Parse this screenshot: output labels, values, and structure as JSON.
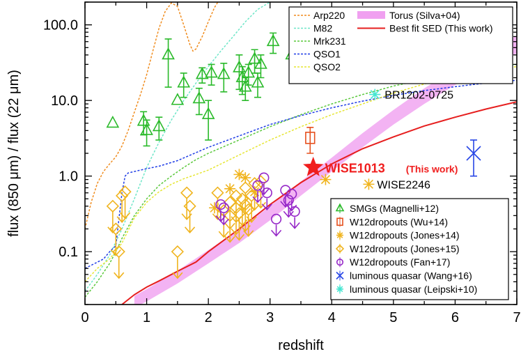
{
  "chart_data": {
    "type": "scatter",
    "xlabel": "redshift",
    "ylabel": "flux (850 μm) / flux (22 μm)",
    "xlim": [
      0,
      7
    ],
    "ylim": [
      0.02,
      200
    ],
    "yscale": "log",
    "x_ticks": [
      "0",
      "1",
      "2",
      "3",
      "4",
      "5",
      "6",
      "7"
    ],
    "y_ticks": [
      {
        "value": 0.1,
        "label": "0.1"
      },
      {
        "value": 1,
        "label": "1.0"
      },
      {
        "value": 10,
        "label": "10.0"
      },
      {
        "value": 100,
        "label": "100.0"
      }
    ],
    "grid": false,
    "templates": [
      {
        "name": "Arp220",
        "color": "#f08c1e",
        "dash": "dotted",
        "x": [
          0.0,
          0.1,
          0.2,
          0.3,
          0.4,
          0.5,
          0.6,
          0.7,
          0.8,
          0.9,
          1.0,
          1.1,
          1.2,
          1.3,
          1.4,
          1.5,
          1.6,
          1.7,
          1.75,
          1.8,
          1.9,
          2.0,
          2.1,
          2.2
        ],
        "y": [
          0.2,
          0.45,
          0.8,
          1.15,
          1.45,
          1.8,
          2.5,
          4.0,
          7.0,
          12.0,
          22.0,
          45.0,
          90.0,
          150.0,
          195.0,
          175.0,
          100.0,
          55.0,
          45.0,
          48.0,
          70.0,
          110.0,
          170.0,
          230.0
        ]
      },
      {
        "name": "M82",
        "color": "#6ee6c8",
        "dash": "dotted",
        "x": [
          0.0,
          0.2,
          0.4,
          0.6,
          0.8,
          1.0,
          1.2,
          1.4,
          1.6,
          1.8,
          2.0,
          2.2,
          2.4,
          2.6,
          2.8,
          3.0,
          3.2
        ],
        "y": [
          0.03,
          0.05,
          0.09,
          0.2,
          0.5,
          1.3,
          2.8,
          5.5,
          10.0,
          17.0,
          28.0,
          45.0,
          70.0,
          110.0,
          160.0,
          200.0,
          230.0
        ]
      },
      {
        "name": "Mrk231",
        "color": "#5ac83c",
        "dash": "dotted",
        "x": [
          0.0,
          0.2,
          0.4,
          0.5,
          0.6,
          0.8,
          1.0,
          1.2,
          1.4,
          1.6,
          1.8,
          2.0,
          2.5,
          3.0,
          3.5,
          4.0,
          4.5,
          5.0,
          5.5,
          6.0,
          6.5,
          7.0
        ],
        "y": [
          0.025,
          0.04,
          0.07,
          0.1,
          0.15,
          0.3,
          0.5,
          0.75,
          1.0,
          1.3,
          1.65,
          2.0,
          3.0,
          4.5,
          6.5,
          9.0,
          12.0,
          15.5,
          19.0,
          23.0,
          27.0,
          30.0
        ]
      },
      {
        "name": "QSO1",
        "color": "#1e3ce6",
        "dash": "dotted",
        "x": [
          0.0,
          0.3,
          0.4,
          0.5,
          0.6,
          0.65,
          0.7,
          0.8,
          1.0,
          1.2,
          1.5,
          2.0,
          2.5,
          3.0,
          3.5,
          4.0,
          4.5,
          5.0,
          5.5,
          6.0,
          6.5,
          7.0
        ],
        "y": [
          0.06,
          0.08,
          0.1,
          0.12,
          0.6,
          1.0,
          1.1,
          1.15,
          1.25,
          1.35,
          1.6,
          2.4,
          3.4,
          4.8,
          6.3,
          8.0,
          9.8,
          11.7,
          13.5,
          15.2,
          17.0,
          18.5
        ]
      },
      {
        "name": "QSO2",
        "color": "#e6e632",
        "dash": "dotted",
        "x": [
          0.0,
          0.2,
          0.4,
          0.6,
          0.8,
          1.0,
          1.2,
          1.4,
          1.6,
          1.8,
          2.0,
          2.5,
          3.0,
          3.5,
          4.0,
          4.5,
          5.0,
          5.5,
          6.0,
          6.5,
          7.0
        ],
        "y": [
          0.04,
          0.06,
          0.08,
          0.13,
          0.28,
          0.45,
          0.62,
          0.78,
          0.92,
          1.05,
          1.2,
          1.9,
          3.0,
          4.5,
          6.5,
          9.0,
          12.5,
          16.5,
          21.0,
          25.0,
          28.0
        ]
      },
      {
        "name": "Best fit SED (This work)",
        "color": "#e61e1e",
        "dash": "solid",
        "x": [
          0.6,
          0.8,
          1.0,
          1.2,
          1.5,
          1.8,
          2.0,
          2.5,
          3.0,
          3.5,
          4.0,
          4.5,
          5.0,
          5.5,
          6.0,
          6.5,
          7.0
        ],
        "y": [
          0.02,
          0.027,
          0.034,
          0.041,
          0.055,
          0.073,
          0.1,
          0.2,
          0.42,
          0.82,
          1.45,
          2.3,
          3.3,
          4.6,
          6.0,
          7.7,
          9.6
        ]
      }
    ],
    "torus_band": {
      "name": "Torus (Silva+04)",
      "color": "#f0a0f0",
      "x": [
        0.8,
        1.0,
        1.5,
        2.0,
        2.5,
        3.0,
        3.5,
        4.0,
        4.5,
        5.0,
        5.5,
        6.0,
        6.5,
        7.0
      ],
      "lower": [
        0.018,
        0.022,
        0.038,
        0.07,
        0.13,
        0.26,
        0.55,
        1.15,
        2.4,
        4.8,
        9.0,
        16.0,
        27.0,
        42.0
      ],
      "upper": [
        0.026,
        0.032,
        0.056,
        0.105,
        0.2,
        0.4,
        0.85,
        1.75,
        3.7,
        7.5,
        14.5,
        26.0,
        45.0,
        72.0
      ]
    },
    "datasets": [
      {
        "name": "SMGs (Magnelli+12)",
        "color": "#2aba2a",
        "marker": "triangle",
        "points": [
          {
            "x": 0.45,
            "y": 5.0
          },
          {
            "x": 0.95,
            "y": 5.3,
            "err": 1.8
          },
          {
            "x": 1.0,
            "y": 4.0,
            "err": 1.5
          },
          {
            "x": 1.2,
            "y": 4.5,
            "err": 1.5
          },
          {
            "x": 1.35,
            "y": 40.0,
            "err": 25.0
          },
          {
            "x": 1.5,
            "y": 10.0
          },
          {
            "x": 1.6,
            "y": 17.0,
            "err": 6.0
          },
          {
            "x": 1.85,
            "y": 10.5,
            "err": 4.0
          },
          {
            "x": 1.9,
            "y": 22.0,
            "err": 5.0
          },
          {
            "x": 2.0,
            "y": 6.5,
            "err": 3.5
          },
          {
            "x": 2.05,
            "y": 23.0,
            "err": 7.0
          },
          {
            "x": 2.25,
            "y": 22.0,
            "err": 9.0
          },
          {
            "x": 2.5,
            "y": 27.0,
            "err": 13.0
          },
          {
            "x": 2.55,
            "y": 20.0,
            "err": 8.0
          },
          {
            "x": 2.6,
            "y": 15.0,
            "err": 5.0
          },
          {
            "x": 2.65,
            "y": 23.0,
            "err": 7.0
          },
          {
            "x": 2.75,
            "y": 35.0,
            "err": 12.0
          },
          {
            "x": 2.8,
            "y": 17.0,
            "err": 6.0
          },
          {
            "x": 2.85,
            "y": 30.0,
            "err": 10.0
          },
          {
            "x": 3.05,
            "y": 60.0,
            "err": 18.0
          },
          {
            "x": 3.35,
            "y": 40.0
          }
        ]
      },
      {
        "name": "W12dropouts (Wu+14)",
        "color": "#e6501e",
        "marker": "square",
        "points": [
          {
            "x": 3.65,
            "y": 3.2,
            "err": 1.2
          }
        ]
      },
      {
        "name": "W12dropouts (Jones+14)",
        "color": "#f0b41e",
        "marker": "asterisk",
        "points": [
          {
            "x": 2.1,
            "y": 0.38
          },
          {
            "x": 2.35,
            "y": 0.68
          },
          {
            "x": 2.5,
            "y": 1.05
          },
          {
            "x": 2.6,
            "y": 0.95
          },
          {
            "x": 2.75,
            "y": 0.62
          },
          {
            "x": 3.9,
            "y": 0.9
          },
          {
            "x": 4.6,
            "y": 0.78
          }
        ]
      },
      {
        "name": "W12dropouts (Jones+15)",
        "color": "#f0b41e",
        "marker": "diamond-upper-limit",
        "points": [
          {
            "x": 0.45,
            "y": 0.4
          },
          {
            "x": 0.5,
            "y": 0.2
          },
          {
            "x": 0.55,
            "y": 0.1
          },
          {
            "x": 0.6,
            "y": 0.55
          },
          {
            "x": 0.65,
            "y": 0.62
          },
          {
            "x": 1.5,
            "y": 0.1
          },
          {
            "x": 1.65,
            "y": 0.6
          },
          {
            "x": 1.7,
            "y": 0.4
          },
          {
            "x": 2.15,
            "y": 0.6
          },
          {
            "x": 2.25,
            "y": 0.35
          },
          {
            "x": 2.35,
            "y": 0.45
          },
          {
            "x": 2.45,
            "y": 0.55
          },
          {
            "x": 2.55,
            "y": 0.5
          },
          {
            "x": 2.6,
            "y": 0.7
          },
          {
            "x": 2.75,
            "y": 0.8
          },
          {
            "x": 2.35,
            "y": 0.3
          },
          {
            "x": 2.5,
            "y": 0.32
          },
          {
            "x": 2.6,
            "y": 0.42
          },
          {
            "x": 2.7,
            "y": 0.55
          },
          {
            "x": 2.85,
            "y": 0.85
          },
          {
            "x": 2.65,
            "y": 0.36
          },
          {
            "x": 2.45,
            "y": 0.38
          }
        ]
      },
      {
        "name": "W12dropouts (Fan+17)",
        "color": "#9628c8",
        "marker": "circle-upper-limit",
        "points": [
          {
            "x": 2.2,
            "y": 0.42
          },
          {
            "x": 2.25,
            "y": 0.38
          },
          {
            "x": 2.8,
            "y": 0.75
          },
          {
            "x": 2.9,
            "y": 0.95
          },
          {
            "x": 2.95,
            "y": 0.6
          },
          {
            "x": 3.1,
            "y": 0.27
          },
          {
            "x": 3.25,
            "y": 0.65
          },
          {
            "x": 3.35,
            "y": 0.58
          },
          {
            "x": 3.3,
            "y": 0.48
          },
          {
            "x": 3.4,
            "y": 0.34
          }
        ]
      },
      {
        "name": "luminous quasar (Wang+16)",
        "color": "#2846e6",
        "marker": "x",
        "points": [
          {
            "x": 6.3,
            "y": 2.0,
            "err": 1.0
          }
        ]
      },
      {
        "name": "luminous quasar (Leipski+10)",
        "color": "#46e6d2",
        "marker": "asterisk",
        "points": [
          {
            "x": 4.7,
            "y": 12.0
          }
        ]
      }
    ],
    "highlight": {
      "x": 3.7,
      "y": 1.3,
      "color": "#f01e1e",
      "label": "WISE1013",
      "sublabel": "(This work)"
    },
    "annotations": [
      {
        "text": "BR1202-0725",
        "x": 4.7,
        "y": 12.0
      },
      {
        "text": "WISE2246",
        "x": 4.6,
        "y": 0.78
      }
    ],
    "legend_top": {
      "placement": "top-right",
      "items": [
        {
          "label": "Arp220",
          "color": "#f08c1e",
          "kind": "dotted"
        },
        {
          "label": "M82",
          "color": "#6ee6c8",
          "kind": "dotted"
        },
        {
          "label": "Mrk231",
          "color": "#5ac83c",
          "kind": "dotted"
        },
        {
          "label": "QSO1",
          "color": "#1e3ce6",
          "kind": "dotted"
        },
        {
          "label": "QSO2",
          "color": "#e6e632",
          "kind": "dotted"
        },
        {
          "label": "Torus (Silva+04)",
          "color": "#f0a0f0",
          "kind": "band"
        },
        {
          "label": "Best fit SED (This work)",
          "color": "#e61e1e",
          "kind": "solid"
        }
      ]
    },
    "legend_bottom": {
      "placement": "bottom-right",
      "items": [
        {
          "label": "SMGs (Magnelli+12)",
          "color": "#2aba2a",
          "marker": "triangle"
        },
        {
          "label": "W12dropouts (Wu+14)",
          "color": "#e6501e",
          "marker": "square"
        },
        {
          "label": "W12dropouts (Jones+14)",
          "color": "#f0b41e",
          "marker": "asterisk"
        },
        {
          "label": "W12dropouts (Jones+15)",
          "color": "#f0b41e",
          "marker": "diamond"
        },
        {
          "label": "W12dropouts (Fan+17)",
          "color": "#9628c8",
          "marker": "circle"
        },
        {
          "label": "luminous quasar (Wang+16)",
          "color": "#2846e6",
          "marker": "x"
        },
        {
          "label": "luminous quasar (Leipski+10)",
          "color": "#46e6d2",
          "marker": "asterisk"
        }
      ]
    }
  }
}
